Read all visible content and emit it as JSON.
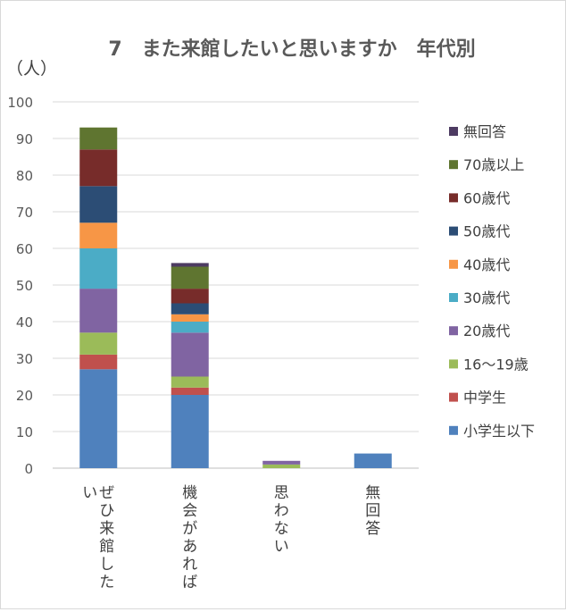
{
  "chart_data": {
    "type": "bar",
    "stacked": true,
    "title": "7　また来館したいと思いますか　年代別",
    "ylabel": "（人）",
    "xlabel": "",
    "ylim": [
      0,
      100
    ],
    "yticks": [
      0,
      10,
      20,
      30,
      40,
      50,
      60,
      70,
      80,
      90,
      100
    ],
    "grid": true,
    "legend_position": "right",
    "categories": [
      "ぜひ来館したい",
      "機会があれば",
      "思わない",
      "無回答"
    ],
    "series": [
      {
        "name": "小学生以下",
        "color": "#4f81bd",
        "values": [
          27,
          20,
          0,
          4
        ]
      },
      {
        "name": "中学生",
        "color": "#c0504d",
        "values": [
          4,
          2,
          0,
          0
        ]
      },
      {
        "name": "16～19歳",
        "color": "#9bbb59",
        "values": [
          6,
          3,
          1,
          0
        ]
      },
      {
        "name": "20歳代",
        "color": "#8064a2",
        "values": [
          12,
          12,
          1,
          0
        ]
      },
      {
        "name": "30歳代",
        "color": "#4bacc6",
        "values": [
          11,
          3,
          0,
          0
        ]
      },
      {
        "name": "40歳代",
        "color": "#f79646",
        "values": [
          7,
          2,
          0,
          0
        ]
      },
      {
        "name": "50歳代",
        "color": "#2c4d75",
        "values": [
          10,
          3,
          0,
          0
        ]
      },
      {
        "name": "60歳代",
        "color": "#772c2a",
        "values": [
          10,
          4,
          0,
          0
        ]
      },
      {
        "name": "70歳以上",
        "color": "#5f7530",
        "values": [
          6,
          6,
          0,
          0
        ]
      },
      {
        "name": "無回答",
        "color": "#4d3b62",
        "values": [
          0,
          1,
          0,
          0
        ]
      }
    ]
  }
}
